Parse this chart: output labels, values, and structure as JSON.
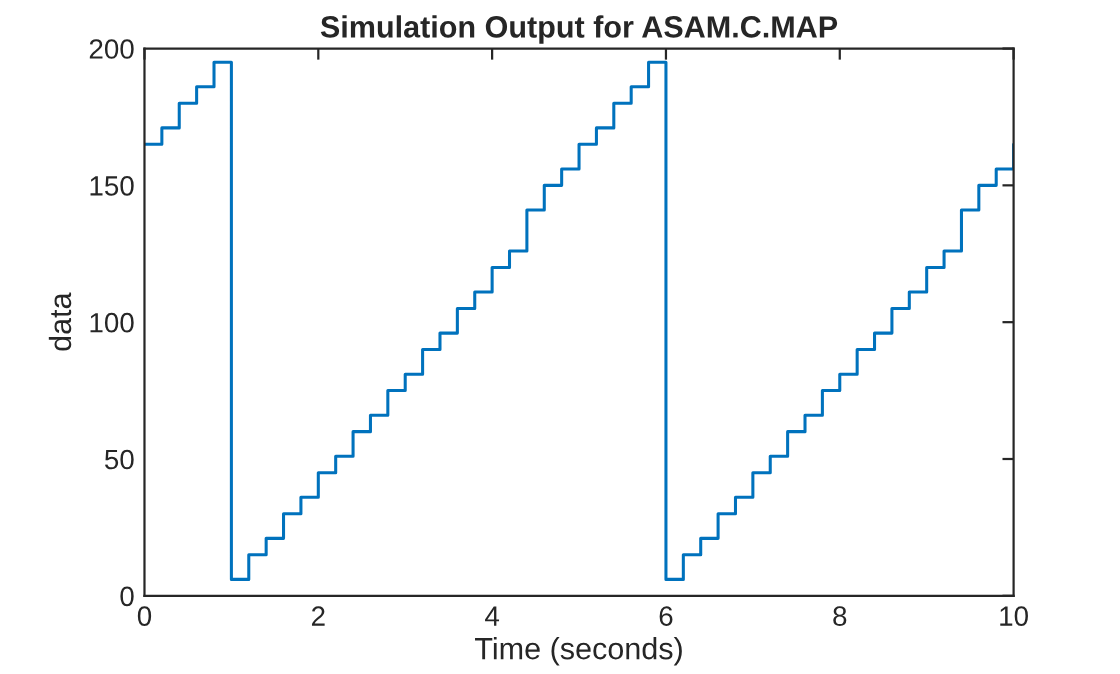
{
  "chart_data": {
    "type": "step",
    "title": "Simulation Output for ASAM.C.MAP",
    "xlabel": "Time (seconds)",
    "ylabel": "data",
    "x": [
      0,
      0.2,
      0.4,
      0.6,
      0.8,
      1,
      1.2,
      1.4,
      1.6,
      1.8,
      2,
      2.2,
      2.4,
      2.6,
      2.8,
      3,
      3.2,
      3.4,
      3.6,
      3.8,
      4,
      4.2,
      4.4,
      4.6,
      4.8,
      5,
      5.2,
      5.4,
      5.6,
      5.8,
      6,
      6.2,
      6.4,
      6.6,
      6.8,
      7,
      7.2,
      7.4,
      7.6,
      7.8,
      8,
      8.2,
      8.4,
      8.6,
      8.8,
      9,
      9.2,
      9.4,
      9.6,
      9.8,
      10
    ],
    "series": [
      {
        "color": "#0072bd",
        "values": [
          165,
          171,
          180,
          186,
          195,
          6,
          15,
          21,
          30,
          36,
          45,
          51,
          60,
          66,
          75,
          81,
          90,
          96,
          105,
          111,
          120,
          126,
          141,
          150,
          156,
          165,
          171,
          180,
          186,
          195,
          6,
          15,
          21,
          30,
          36,
          45,
          51,
          60,
          66,
          75,
          81,
          90,
          96,
          105,
          111,
          120,
          126,
          141,
          150,
          156,
          165
        ]
      }
    ],
    "xlim": [
      0,
      10
    ],
    "xticks": [
      0,
      2,
      4,
      6,
      8,
      10
    ],
    "ylim": [
      0,
      200
    ],
    "yticks": [
      0,
      50,
      100,
      150,
      200
    ],
    "grid": false
  }
}
